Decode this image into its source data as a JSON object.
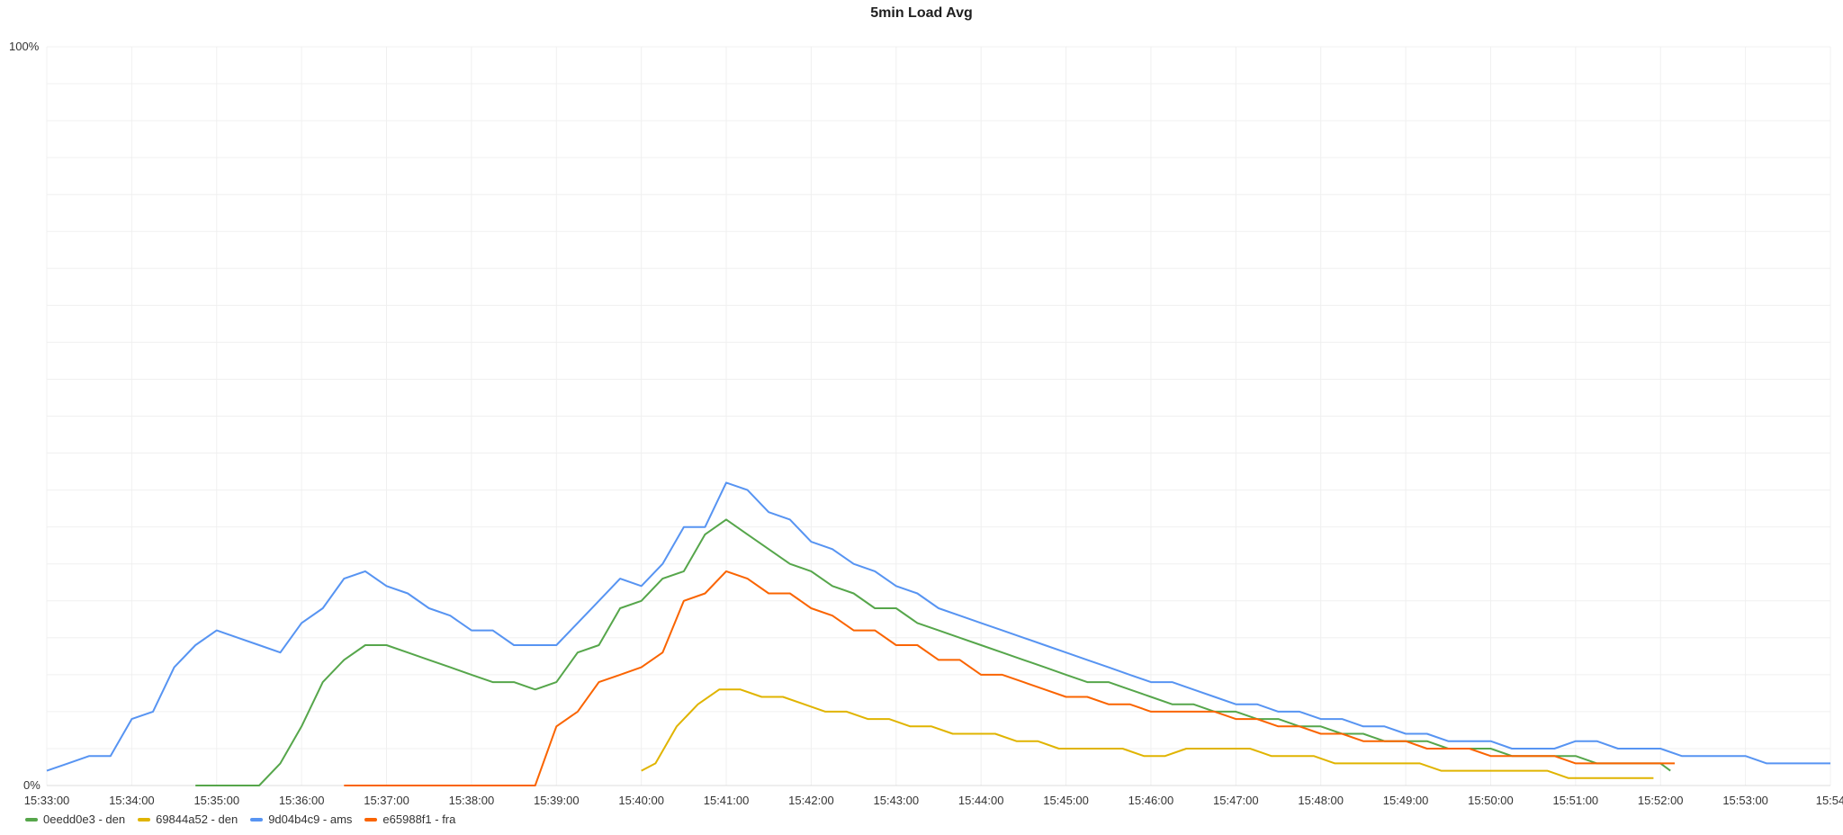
{
  "chart_data": {
    "type": "line",
    "title": "5min Load Avg",
    "y_tick_labels": [
      "0%",
      "100%"
    ],
    "ylim": [
      0,
      100
    ],
    "x_tick_labels": [
      "15:33:00",
      "15:34:00",
      "15:35:00",
      "15:36:00",
      "15:37:00",
      "15:38:00",
      "15:39:00",
      "15:40:00",
      "15:41:00",
      "15:42:00",
      "15:43:00",
      "15:44:00",
      "15:45:00",
      "15:46:00",
      "15:47:00",
      "15:48:00",
      "15:49:00",
      "15:50:00",
      "15:51:00",
      "15:52:00",
      "15:53:00",
      "15:54"
    ],
    "x_range": [
      "15:33:00",
      "15:54:00"
    ],
    "grid": true,
    "legend_position": "bottom-left",
    "series": [
      {
        "name": "0eedd0e3 - den",
        "color": "#56a64b",
        "points": [
          [
            "15:34:45",
            0
          ],
          [
            "15:35:00",
            0
          ],
          [
            "15:35:15",
            0
          ],
          [
            "15:35:30",
            0
          ],
          [
            "15:35:45",
            3
          ],
          [
            "15:36:00",
            8
          ],
          [
            "15:36:15",
            14
          ],
          [
            "15:36:30",
            17
          ],
          [
            "15:36:45",
            19
          ],
          [
            "15:37:00",
            19
          ],
          [
            "15:37:15",
            18
          ],
          [
            "15:37:30",
            17
          ],
          [
            "15:37:45",
            16
          ],
          [
            "15:38:00",
            15
          ],
          [
            "15:38:15",
            14
          ],
          [
            "15:38:30",
            14
          ],
          [
            "15:38:45",
            13
          ],
          [
            "15:39:00",
            14
          ],
          [
            "15:39:15",
            18
          ],
          [
            "15:39:30",
            19
          ],
          [
            "15:39:45",
            24
          ],
          [
            "15:40:00",
            25
          ],
          [
            "15:40:15",
            28
          ],
          [
            "15:40:30",
            29
          ],
          [
            "15:40:45",
            34
          ],
          [
            "15:41:00",
            36
          ],
          [
            "15:41:15",
            34
          ],
          [
            "15:41:30",
            32
          ],
          [
            "15:41:45",
            30
          ],
          [
            "15:42:00",
            29
          ],
          [
            "15:42:15",
            27
          ],
          [
            "15:42:30",
            26
          ],
          [
            "15:42:45",
            24
          ],
          [
            "15:43:00",
            24
          ],
          [
            "15:43:15",
            22
          ],
          [
            "15:43:30",
            21
          ],
          [
            "15:43:45",
            20
          ],
          [
            "15:44:00",
            19
          ],
          [
            "15:44:15",
            18
          ],
          [
            "15:44:30",
            17
          ],
          [
            "15:44:45",
            16
          ],
          [
            "15:45:00",
            15
          ],
          [
            "15:45:15",
            14
          ],
          [
            "15:45:30",
            14
          ],
          [
            "15:45:45",
            13
          ],
          [
            "15:46:00",
            12
          ],
          [
            "15:46:15",
            11
          ],
          [
            "15:46:30",
            11
          ],
          [
            "15:46:45",
            10
          ],
          [
            "15:47:00",
            10
          ],
          [
            "15:47:15",
            9
          ],
          [
            "15:47:30",
            9
          ],
          [
            "15:47:45",
            8
          ],
          [
            "15:48:00",
            8
          ],
          [
            "15:48:15",
            7
          ],
          [
            "15:48:30",
            7
          ],
          [
            "15:48:45",
            6
          ],
          [
            "15:49:00",
            6
          ],
          [
            "15:49:15",
            6
          ],
          [
            "15:49:30",
            5
          ],
          [
            "15:49:45",
            5
          ],
          [
            "15:50:00",
            5
          ],
          [
            "15:50:15",
            4
          ],
          [
            "15:50:30",
            4
          ],
          [
            "15:50:45",
            4
          ],
          [
            "15:51:00",
            4
          ],
          [
            "15:51:15",
            3
          ],
          [
            "15:51:30",
            3
          ],
          [
            "15:51:45",
            3
          ],
          [
            "15:52:00",
            3
          ],
          [
            "15:52:07",
            2
          ]
        ]
      },
      {
        "name": "69844a52 - den",
        "color": "#e0b400",
        "points": [
          [
            "15:40:00",
            2
          ],
          [
            "15:40:10",
            3
          ],
          [
            "15:40:25",
            8
          ],
          [
            "15:40:40",
            11
          ],
          [
            "15:40:55",
            13
          ],
          [
            "15:41:10",
            13
          ],
          [
            "15:41:25",
            12
          ],
          [
            "15:41:40",
            12
          ],
          [
            "15:41:55",
            11
          ],
          [
            "15:42:10",
            10
          ],
          [
            "15:42:25",
            10
          ],
          [
            "15:42:40",
            9
          ],
          [
            "15:42:55",
            9
          ],
          [
            "15:43:10",
            8
          ],
          [
            "15:43:25",
            8
          ],
          [
            "15:43:40",
            7
          ],
          [
            "15:43:55",
            7
          ],
          [
            "15:44:10",
            7
          ],
          [
            "15:44:25",
            6
          ],
          [
            "15:44:40",
            6
          ],
          [
            "15:44:55",
            5
          ],
          [
            "15:45:10",
            5
          ],
          [
            "15:45:25",
            5
          ],
          [
            "15:45:40",
            5
          ],
          [
            "15:45:55",
            4
          ],
          [
            "15:46:10",
            4
          ],
          [
            "15:46:25",
            5
          ],
          [
            "15:46:40",
            5
          ],
          [
            "15:46:55",
            5
          ],
          [
            "15:47:10",
            5
          ],
          [
            "15:47:25",
            4
          ],
          [
            "15:47:40",
            4
          ],
          [
            "15:47:55",
            4
          ],
          [
            "15:48:10",
            3
          ],
          [
            "15:48:25",
            3
          ],
          [
            "15:48:40",
            3
          ],
          [
            "15:48:55",
            3
          ],
          [
            "15:49:10",
            3
          ],
          [
            "15:49:25",
            2
          ],
          [
            "15:49:40",
            2
          ],
          [
            "15:49:55",
            2
          ],
          [
            "15:50:10",
            2
          ],
          [
            "15:50:25",
            2
          ],
          [
            "15:50:40",
            2
          ],
          [
            "15:50:55",
            1
          ],
          [
            "15:51:10",
            1
          ],
          [
            "15:51:25",
            1
          ],
          [
            "15:51:40",
            1
          ],
          [
            "15:51:55",
            1
          ]
        ]
      },
      {
        "name": "9d04b4c9 - ams",
        "color": "#5794f2",
        "points": [
          [
            "15:33:00",
            2
          ],
          [
            "15:33:15",
            3
          ],
          [
            "15:33:30",
            4
          ],
          [
            "15:33:45",
            4
          ],
          [
            "15:34:00",
            9
          ],
          [
            "15:34:15",
            10
          ],
          [
            "15:34:30",
            16
          ],
          [
            "15:34:45",
            19
          ],
          [
            "15:35:00",
            21
          ],
          [
            "15:35:15",
            20
          ],
          [
            "15:35:30",
            19
          ],
          [
            "15:35:45",
            18
          ],
          [
            "15:36:00",
            22
          ],
          [
            "15:36:15",
            24
          ],
          [
            "15:36:30",
            28
          ],
          [
            "15:36:45",
            29
          ],
          [
            "15:37:00",
            27
          ],
          [
            "15:37:15",
            26
          ],
          [
            "15:37:30",
            24
          ],
          [
            "15:37:45",
            23
          ],
          [
            "15:38:00",
            21
          ],
          [
            "15:38:15",
            21
          ],
          [
            "15:38:30",
            19
          ],
          [
            "15:38:45",
            19
          ],
          [
            "15:39:00",
            19
          ],
          [
            "15:39:15",
            22
          ],
          [
            "15:39:30",
            25
          ],
          [
            "15:39:45",
            28
          ],
          [
            "15:40:00",
            27
          ],
          [
            "15:40:15",
            30
          ],
          [
            "15:40:30",
            35
          ],
          [
            "15:40:45",
            35
          ],
          [
            "15:41:00",
            41
          ],
          [
            "15:41:15",
            40
          ],
          [
            "15:41:30",
            37
          ],
          [
            "15:41:45",
            36
          ],
          [
            "15:42:00",
            33
          ],
          [
            "15:42:15",
            32
          ],
          [
            "15:42:30",
            30
          ],
          [
            "15:42:45",
            29
          ],
          [
            "15:43:00",
            27
          ],
          [
            "15:43:15",
            26
          ],
          [
            "15:43:30",
            24
          ],
          [
            "15:43:45",
            23
          ],
          [
            "15:44:00",
            22
          ],
          [
            "15:44:15",
            21
          ],
          [
            "15:44:30",
            20
          ],
          [
            "15:44:45",
            19
          ],
          [
            "15:45:00",
            18
          ],
          [
            "15:45:15",
            17
          ],
          [
            "15:45:30",
            16
          ],
          [
            "15:45:45",
            15
          ],
          [
            "15:46:00",
            14
          ],
          [
            "15:46:15",
            14
          ],
          [
            "15:46:30",
            13
          ],
          [
            "15:46:45",
            12
          ],
          [
            "15:47:00",
            11
          ],
          [
            "15:47:15",
            11
          ],
          [
            "15:47:30",
            10
          ],
          [
            "15:47:45",
            10
          ],
          [
            "15:48:00",
            9
          ],
          [
            "15:48:15",
            9
          ],
          [
            "15:48:30",
            8
          ],
          [
            "15:48:45",
            8
          ],
          [
            "15:49:00",
            7
          ],
          [
            "15:49:15",
            7
          ],
          [
            "15:49:30",
            6
          ],
          [
            "15:49:45",
            6
          ],
          [
            "15:50:00",
            6
          ],
          [
            "15:50:15",
            5
          ],
          [
            "15:50:30",
            5
          ],
          [
            "15:50:45",
            5
          ],
          [
            "15:51:00",
            6
          ],
          [
            "15:51:15",
            6
          ],
          [
            "15:51:30",
            5
          ],
          [
            "15:51:45",
            5
          ],
          [
            "15:52:00",
            5
          ],
          [
            "15:52:15",
            4
          ],
          [
            "15:52:30",
            4
          ],
          [
            "15:52:45",
            4
          ],
          [
            "15:53:00",
            4
          ],
          [
            "15:53:15",
            3
          ],
          [
            "15:53:30",
            3
          ],
          [
            "15:53:45",
            3
          ],
          [
            "15:54:00",
            3
          ]
        ]
      },
      {
        "name": "e65988f1 - fra",
        "color": "#fa6400",
        "points": [
          [
            "15:36:30",
            0
          ],
          [
            "15:37:00",
            0
          ],
          [
            "15:37:30",
            0
          ],
          [
            "15:38:00",
            0
          ],
          [
            "15:38:30",
            0
          ],
          [
            "15:38:45",
            0
          ],
          [
            "15:39:00",
            8
          ],
          [
            "15:39:15",
            10
          ],
          [
            "15:39:30",
            14
          ],
          [
            "15:39:45",
            15
          ],
          [
            "15:40:00",
            16
          ],
          [
            "15:40:15",
            18
          ],
          [
            "15:40:30",
            25
          ],
          [
            "15:40:45",
            26
          ],
          [
            "15:41:00",
            29
          ],
          [
            "15:41:15",
            28
          ],
          [
            "15:41:30",
            26
          ],
          [
            "15:41:45",
            26
          ],
          [
            "15:42:00",
            24
          ],
          [
            "15:42:15",
            23
          ],
          [
            "15:42:30",
            21
          ],
          [
            "15:42:45",
            21
          ],
          [
            "15:43:00",
            19
          ],
          [
            "15:43:15",
            19
          ],
          [
            "15:43:30",
            17
          ],
          [
            "15:43:45",
            17
          ],
          [
            "15:44:00",
            15
          ],
          [
            "15:44:15",
            15
          ],
          [
            "15:44:30",
            14
          ],
          [
            "15:44:45",
            13
          ],
          [
            "15:45:00",
            12
          ],
          [
            "15:45:15",
            12
          ],
          [
            "15:45:30",
            11
          ],
          [
            "15:45:45",
            11
          ],
          [
            "15:46:00",
            10
          ],
          [
            "15:46:15",
            10
          ],
          [
            "15:46:30",
            10
          ],
          [
            "15:46:45",
            10
          ],
          [
            "15:47:00",
            9
          ],
          [
            "15:47:15",
            9
          ],
          [
            "15:47:30",
            8
          ],
          [
            "15:47:45",
            8
          ],
          [
            "15:48:00",
            7
          ],
          [
            "15:48:15",
            7
          ],
          [
            "15:48:30",
            6
          ],
          [
            "15:48:45",
            6
          ],
          [
            "15:49:00",
            6
          ],
          [
            "15:49:15",
            5
          ],
          [
            "15:49:30",
            5
          ],
          [
            "15:49:45",
            5
          ],
          [
            "15:50:00",
            4
          ],
          [
            "15:50:15",
            4
          ],
          [
            "15:50:30",
            4
          ],
          [
            "15:50:45",
            4
          ],
          [
            "15:51:00",
            3
          ],
          [
            "15:51:15",
            3
          ],
          [
            "15:51:30",
            3
          ],
          [
            "15:51:45",
            3
          ],
          [
            "15:52:00",
            3
          ],
          [
            "15:52:10",
            3
          ]
        ]
      }
    ]
  }
}
